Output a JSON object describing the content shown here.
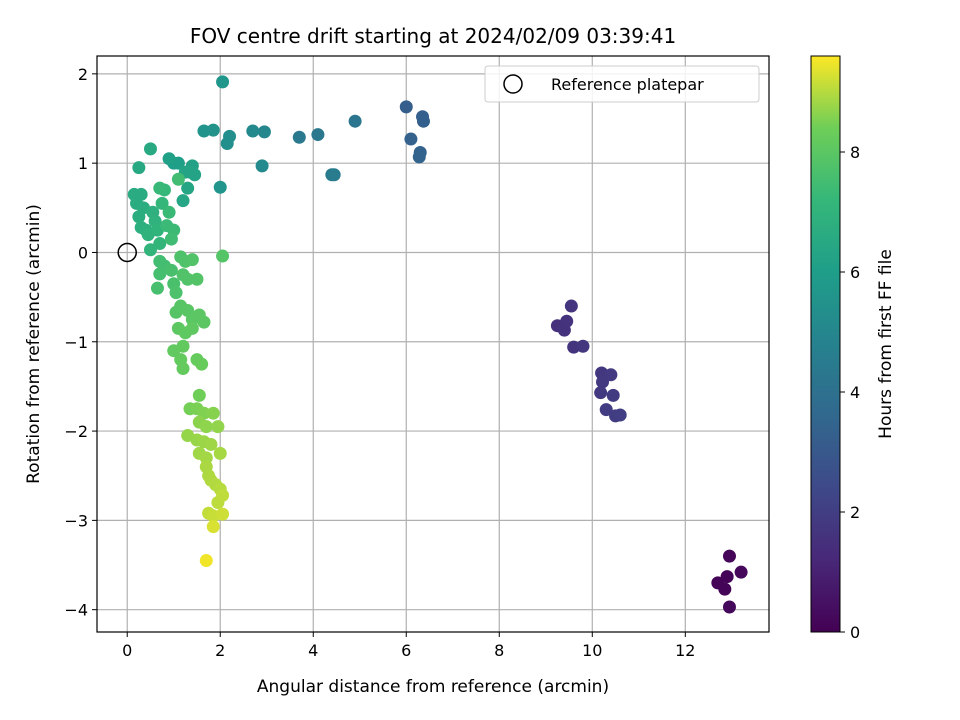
{
  "chart_data": {
    "type": "scatter",
    "title": "FOV centre drift starting at 2024/02/09 03:39:41",
    "xlabel": "Angular distance from reference (arcmin)",
    "ylabel": "Rotation from reference (arcmin)",
    "xlim": [
      -0.65,
      13.8
    ],
    "ylim": [
      -4.25,
      2.2
    ],
    "xticks": [
      0,
      2,
      4,
      6,
      8,
      10,
      12
    ],
    "yticks": [
      2,
      1,
      0,
      -1,
      -2,
      -3,
      -4
    ],
    "xtick_labels": [
      "0",
      "2",
      "4",
      "6",
      "8",
      "10",
      "12"
    ],
    "ytick_labels": [
      "2",
      "1",
      "0",
      "−1",
      "−2",
      "−3",
      "−4"
    ],
    "grid": true,
    "legend": {
      "position": "top-right",
      "entries": [
        "Reference platepar"
      ]
    },
    "reference_point": {
      "x": 0,
      "y": 0
    },
    "colorbar": {
      "label": "Hours from first FF file",
      "colormap": "viridis",
      "range": [
        0,
        9.6
      ],
      "ticks": [
        0,
        2,
        4,
        6,
        8
      ],
      "tick_labels": [
        "0",
        "2",
        "4",
        "6",
        "8"
      ]
    },
    "points": [
      {
        "x": 12.7,
        "y": -3.7,
        "t": 0.05
      },
      {
        "x": 12.85,
        "y": -3.77,
        "t": 0.1
      },
      {
        "x": 12.9,
        "y": -3.63,
        "t": 0.12
      },
      {
        "x": 12.95,
        "y": -3.4,
        "t": 0.15
      },
      {
        "x": 13.2,
        "y": -3.58,
        "t": 0.2
      },
      {
        "x": 12.95,
        "y": -3.97,
        "t": 0.25
      },
      {
        "x": 9.25,
        "y": -0.82,
        "t": 1.5
      },
      {
        "x": 9.4,
        "y": -0.87,
        "t": 1.55
      },
      {
        "x": 9.45,
        "y": -0.77,
        "t": 1.6
      },
      {
        "x": 9.55,
        "y": -0.6,
        "t": 1.62
      },
      {
        "x": 9.6,
        "y": -1.06,
        "t": 1.65
      },
      {
        "x": 9.8,
        "y": -1.05,
        "t": 1.7
      },
      {
        "x": 10.2,
        "y": -1.35,
        "t": 1.75
      },
      {
        "x": 10.22,
        "y": -1.45,
        "t": 1.8
      },
      {
        "x": 10.18,
        "y": -1.57,
        "t": 1.82
      },
      {
        "x": 10.4,
        "y": -1.37,
        "t": 1.85
      },
      {
        "x": 10.45,
        "y": -1.6,
        "t": 1.9
      },
      {
        "x": 10.3,
        "y": -1.76,
        "t": 1.92
      },
      {
        "x": 10.5,
        "y": -1.83,
        "t": 1.95
      },
      {
        "x": 10.6,
        "y": -1.82,
        "t": 2.0
      },
      {
        "x": 6.0,
        "y": 1.63,
        "t": 3.2
      },
      {
        "x": 6.35,
        "y": 1.52,
        "t": 3.25
      },
      {
        "x": 6.37,
        "y": 1.47,
        "t": 3.3
      },
      {
        "x": 6.1,
        "y": 1.27,
        "t": 3.35
      },
      {
        "x": 6.3,
        "y": 1.12,
        "t": 3.4
      },
      {
        "x": 6.28,
        "y": 1.07,
        "t": 3.45
      },
      {
        "x": 4.9,
        "y": 1.47,
        "t": 4.2
      },
      {
        "x": 4.1,
        "y": 1.32,
        "t": 4.3
      },
      {
        "x": 3.7,
        "y": 1.29,
        "t": 4.4
      },
      {
        "x": 4.4,
        "y": 0.87,
        "t": 4.45
      },
      {
        "x": 4.45,
        "y": 0.87,
        "t": 4.5
      },
      {
        "x": 2.95,
        "y": 1.35,
        "t": 5.0
      },
      {
        "x": 2.7,
        "y": 1.36,
        "t": 5.1
      },
      {
        "x": 2.9,
        "y": 0.97,
        "t": 5.15
      },
      {
        "x": 2.2,
        "y": 1.3,
        "t": 5.3
      },
      {
        "x": 2.15,
        "y": 1.22,
        "t": 5.35
      },
      {
        "x": 1.85,
        "y": 1.37,
        "t": 5.5
      },
      {
        "x": 1.65,
        "y": 1.36,
        "t": 5.55
      },
      {
        "x": 2.0,
        "y": 0.73,
        "t": 5.6
      },
      {
        "x": 2.05,
        "y": 1.91,
        "t": 5.65
      },
      {
        "x": 1.0,
        "y": 1.0,
        "t": 6.0
      },
      {
        "x": 1.1,
        "y": 1.0,
        "t": 6.05
      },
      {
        "x": 0.9,
        "y": 1.05,
        "t": 6.1
      },
      {
        "x": 1.4,
        "y": 0.97,
        "t": 6.15
      },
      {
        "x": 1.35,
        "y": 0.9,
        "t": 6.2
      },
      {
        "x": 1.45,
        "y": 0.87,
        "t": 6.25
      },
      {
        "x": 1.25,
        "y": 0.9,
        "t": 6.3
      },
      {
        "x": 1.3,
        "y": 0.72,
        "t": 6.35
      },
      {
        "x": 1.2,
        "y": 0.58,
        "t": 6.4
      },
      {
        "x": 0.25,
        "y": 0.95,
        "t": 6.5
      },
      {
        "x": 0.5,
        "y": 1.16,
        "t": 6.55
      },
      {
        "x": 0.15,
        "y": 0.65,
        "t": 6.6
      },
      {
        "x": 0.3,
        "y": 0.65,
        "t": 6.62
      },
      {
        "x": 0.2,
        "y": 0.55,
        "t": 6.65
      },
      {
        "x": 0.35,
        "y": 0.5,
        "t": 6.7
      },
      {
        "x": 0.25,
        "y": 0.4,
        "t": 6.72
      },
      {
        "x": 0.3,
        "y": 0.28,
        "t": 6.75
      },
      {
        "x": 0.4,
        "y": 0.25,
        "t": 6.8
      },
      {
        "x": 0.55,
        "y": 0.45,
        "t": 6.85
      },
      {
        "x": 0.6,
        "y": 0.35,
        "t": 6.9
      },
      {
        "x": 0.45,
        "y": 0.2,
        "t": 6.95
      },
      {
        "x": 0.65,
        "y": 0.25,
        "t": 7.0
      },
      {
        "x": 0.5,
        "y": 0.03,
        "t": 7.05
      },
      {
        "x": 0.7,
        "y": 0.1,
        "t": 7.1
      },
      {
        "x": 0.75,
        "y": 0.55,
        "t": 7.15
      },
      {
        "x": 0.8,
        "y": 0.7,
        "t": 7.2
      },
      {
        "x": 0.7,
        "y": 0.72,
        "t": 7.25
      },
      {
        "x": 0.9,
        "y": 0.45,
        "t": 7.3
      },
      {
        "x": 0.85,
        "y": 0.3,
        "t": 7.32
      },
      {
        "x": 1.0,
        "y": 0.25,
        "t": 7.35
      },
      {
        "x": 0.95,
        "y": 0.15,
        "t": 7.4
      },
      {
        "x": 1.1,
        "y": 0.82,
        "t": 7.45
      },
      {
        "x": 0.7,
        "y": -0.1,
        "t": 7.5
      },
      {
        "x": 0.8,
        "y": -0.15,
        "t": 7.52
      },
      {
        "x": 0.7,
        "y": -0.24,
        "t": 7.55
      },
      {
        "x": 0.65,
        "y": -0.4,
        "t": 7.6
      },
      {
        "x": 0.95,
        "y": -0.2,
        "t": 7.62
      },
      {
        "x": 1.0,
        "y": -0.35,
        "t": 7.65
      },
      {
        "x": 1.05,
        "y": -0.45,
        "t": 7.7
      },
      {
        "x": 1.15,
        "y": -0.05,
        "t": 7.72
      },
      {
        "x": 1.25,
        "y": -0.1,
        "t": 7.75
      },
      {
        "x": 1.2,
        "y": -0.25,
        "t": 7.78
      },
      {
        "x": 1.3,
        "y": -0.3,
        "t": 7.8
      },
      {
        "x": 1.4,
        "y": -0.08,
        "t": 7.82
      },
      {
        "x": 1.5,
        "y": -0.3,
        "t": 7.85
      },
      {
        "x": 2.05,
        "y": -0.04,
        "t": 7.87
      },
      {
        "x": 1.05,
        "y": -0.67,
        "t": 7.9
      },
      {
        "x": 1.15,
        "y": -0.6,
        "t": 7.92
      },
      {
        "x": 1.3,
        "y": -0.65,
        "t": 7.95
      },
      {
        "x": 1.4,
        "y": -0.75,
        "t": 7.97
      },
      {
        "x": 1.55,
        "y": -0.7,
        "t": 8.0
      },
      {
        "x": 1.65,
        "y": -0.78,
        "t": 8.02
      },
      {
        "x": 1.1,
        "y": -0.85,
        "t": 8.05
      },
      {
        "x": 1.25,
        "y": -0.9,
        "t": 8.07
      },
      {
        "x": 1.4,
        "y": -0.85,
        "t": 8.1
      },
      {
        "x": 1.0,
        "y": -1.1,
        "t": 8.12
      },
      {
        "x": 1.2,
        "y": -1.05,
        "t": 8.15
      },
      {
        "x": 1.15,
        "y": -1.2,
        "t": 8.17
      },
      {
        "x": 1.2,
        "y": -1.3,
        "t": 8.2
      },
      {
        "x": 1.5,
        "y": -1.2,
        "t": 8.22
      },
      {
        "x": 1.6,
        "y": -1.25,
        "t": 8.25
      },
      {
        "x": 1.55,
        "y": -1.6,
        "t": 8.4
      },
      {
        "x": 1.35,
        "y": -1.75,
        "t": 8.45
      },
      {
        "x": 1.5,
        "y": -1.75,
        "t": 8.5
      },
      {
        "x": 1.65,
        "y": -1.8,
        "t": 8.55
      },
      {
        "x": 1.85,
        "y": -1.8,
        "t": 8.6
      },
      {
        "x": 1.55,
        "y": -1.9,
        "t": 8.65
      },
      {
        "x": 1.7,
        "y": -1.95,
        "t": 8.67
      },
      {
        "x": 1.95,
        "y": -1.95,
        "t": 8.7
      },
      {
        "x": 1.3,
        "y": -2.05,
        "t": 8.72
      },
      {
        "x": 1.5,
        "y": -2.1,
        "t": 8.75
      },
      {
        "x": 1.65,
        "y": -2.12,
        "t": 8.77
      },
      {
        "x": 1.8,
        "y": -2.15,
        "t": 8.8
      },
      {
        "x": 1.55,
        "y": -2.25,
        "t": 8.82
      },
      {
        "x": 1.7,
        "y": -2.3,
        "t": 8.85
      },
      {
        "x": 2.0,
        "y": -2.25,
        "t": 8.87
      },
      {
        "x": 1.7,
        "y": -2.4,
        "t": 8.9
      },
      {
        "x": 1.75,
        "y": -2.5,
        "t": 8.92
      },
      {
        "x": 1.8,
        "y": -2.55,
        "t": 8.95
      },
      {
        "x": 1.9,
        "y": -2.6,
        "t": 8.97
      },
      {
        "x": 2.0,
        "y": -2.65,
        "t": 9.0
      },
      {
        "x": 1.95,
        "y": -2.8,
        "t": 9.05
      },
      {
        "x": 2.05,
        "y": -2.72,
        "t": 9.07
      },
      {
        "x": 1.75,
        "y": -2.92,
        "t": 9.1
      },
      {
        "x": 1.85,
        "y": -2.95,
        "t": 9.15
      },
      {
        "x": 2.05,
        "y": -2.93,
        "t": 9.2
      },
      {
        "x": 1.85,
        "y": -3.07,
        "t": 9.3
      },
      {
        "x": 1.7,
        "y": -3.45,
        "t": 9.5
      }
    ]
  }
}
